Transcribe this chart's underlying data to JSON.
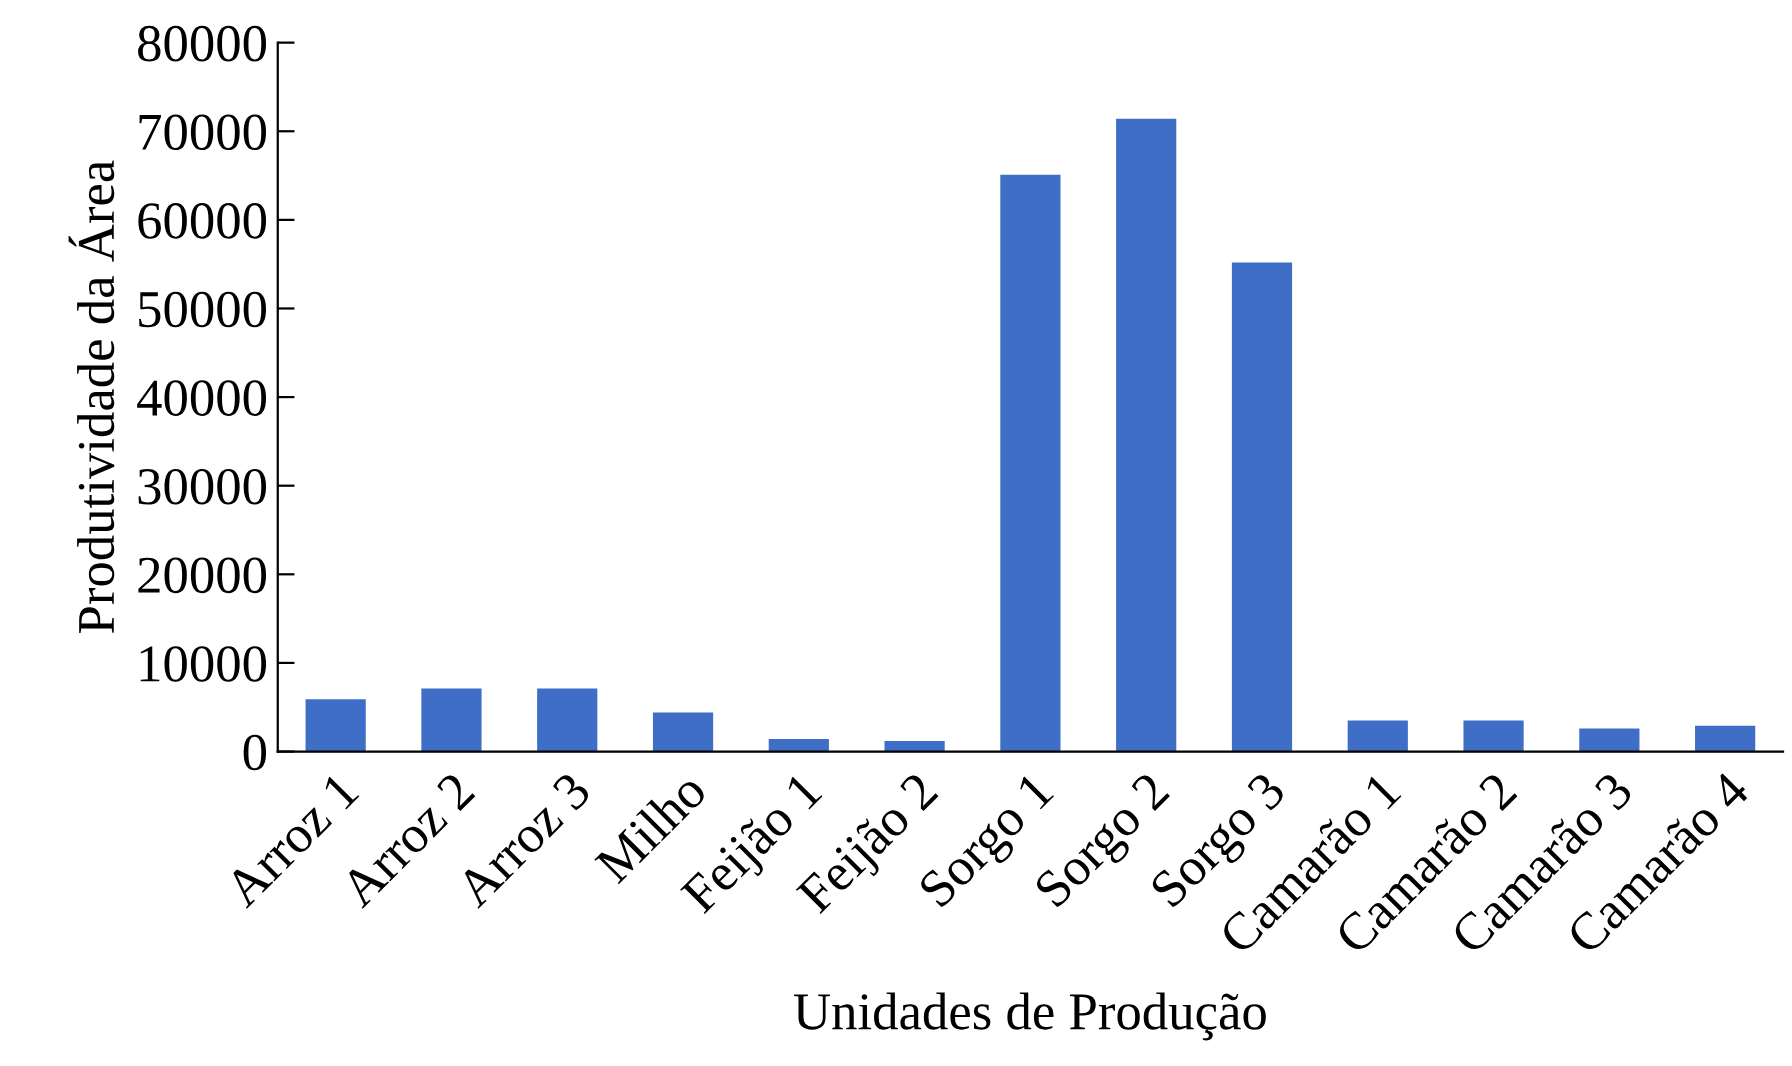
{
  "chart_data": {
    "type": "bar",
    "xlabel": "Unidades de Produção",
    "ylabel": "Produtividade da Área",
    "categories": [
      "Arroz 1",
      "Arroz 2",
      "Arroz 3",
      "Milho",
      "Feijão 1",
      "Feijão 2",
      "Sorgo 1",
      "Sorgo 2",
      "Sorgo 3",
      "Camarão 1",
      "Camarão 2",
      "Camarão 3",
      "Camarão 4"
    ],
    "values": [
      5900,
      7100,
      7100,
      4400,
      1400,
      1200,
      65100,
      71400,
      55200,
      3500,
      3500,
      2600,
      2900
    ],
    "color": "#3f6ec6",
    "ylim": [
      0,
      80000
    ],
    "yticks": [
      0,
      10000,
      20000,
      30000,
      40000,
      50000,
      60000,
      70000,
      80000
    ],
    "grid": false,
    "legend": false
  }
}
